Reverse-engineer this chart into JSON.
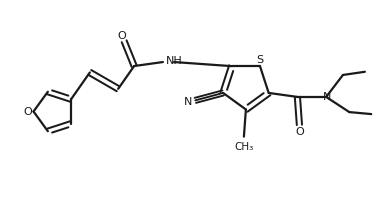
{
  "bg_color": "#ffffff",
  "line_color": "#1a1a1a",
  "line_width": 1.6,
  "figsize": [
    3.84,
    2.01
  ],
  "dpi": 100,
  "xlim": [
    0,
    9.5
  ],
  "ylim": [
    0,
    5.0
  ]
}
